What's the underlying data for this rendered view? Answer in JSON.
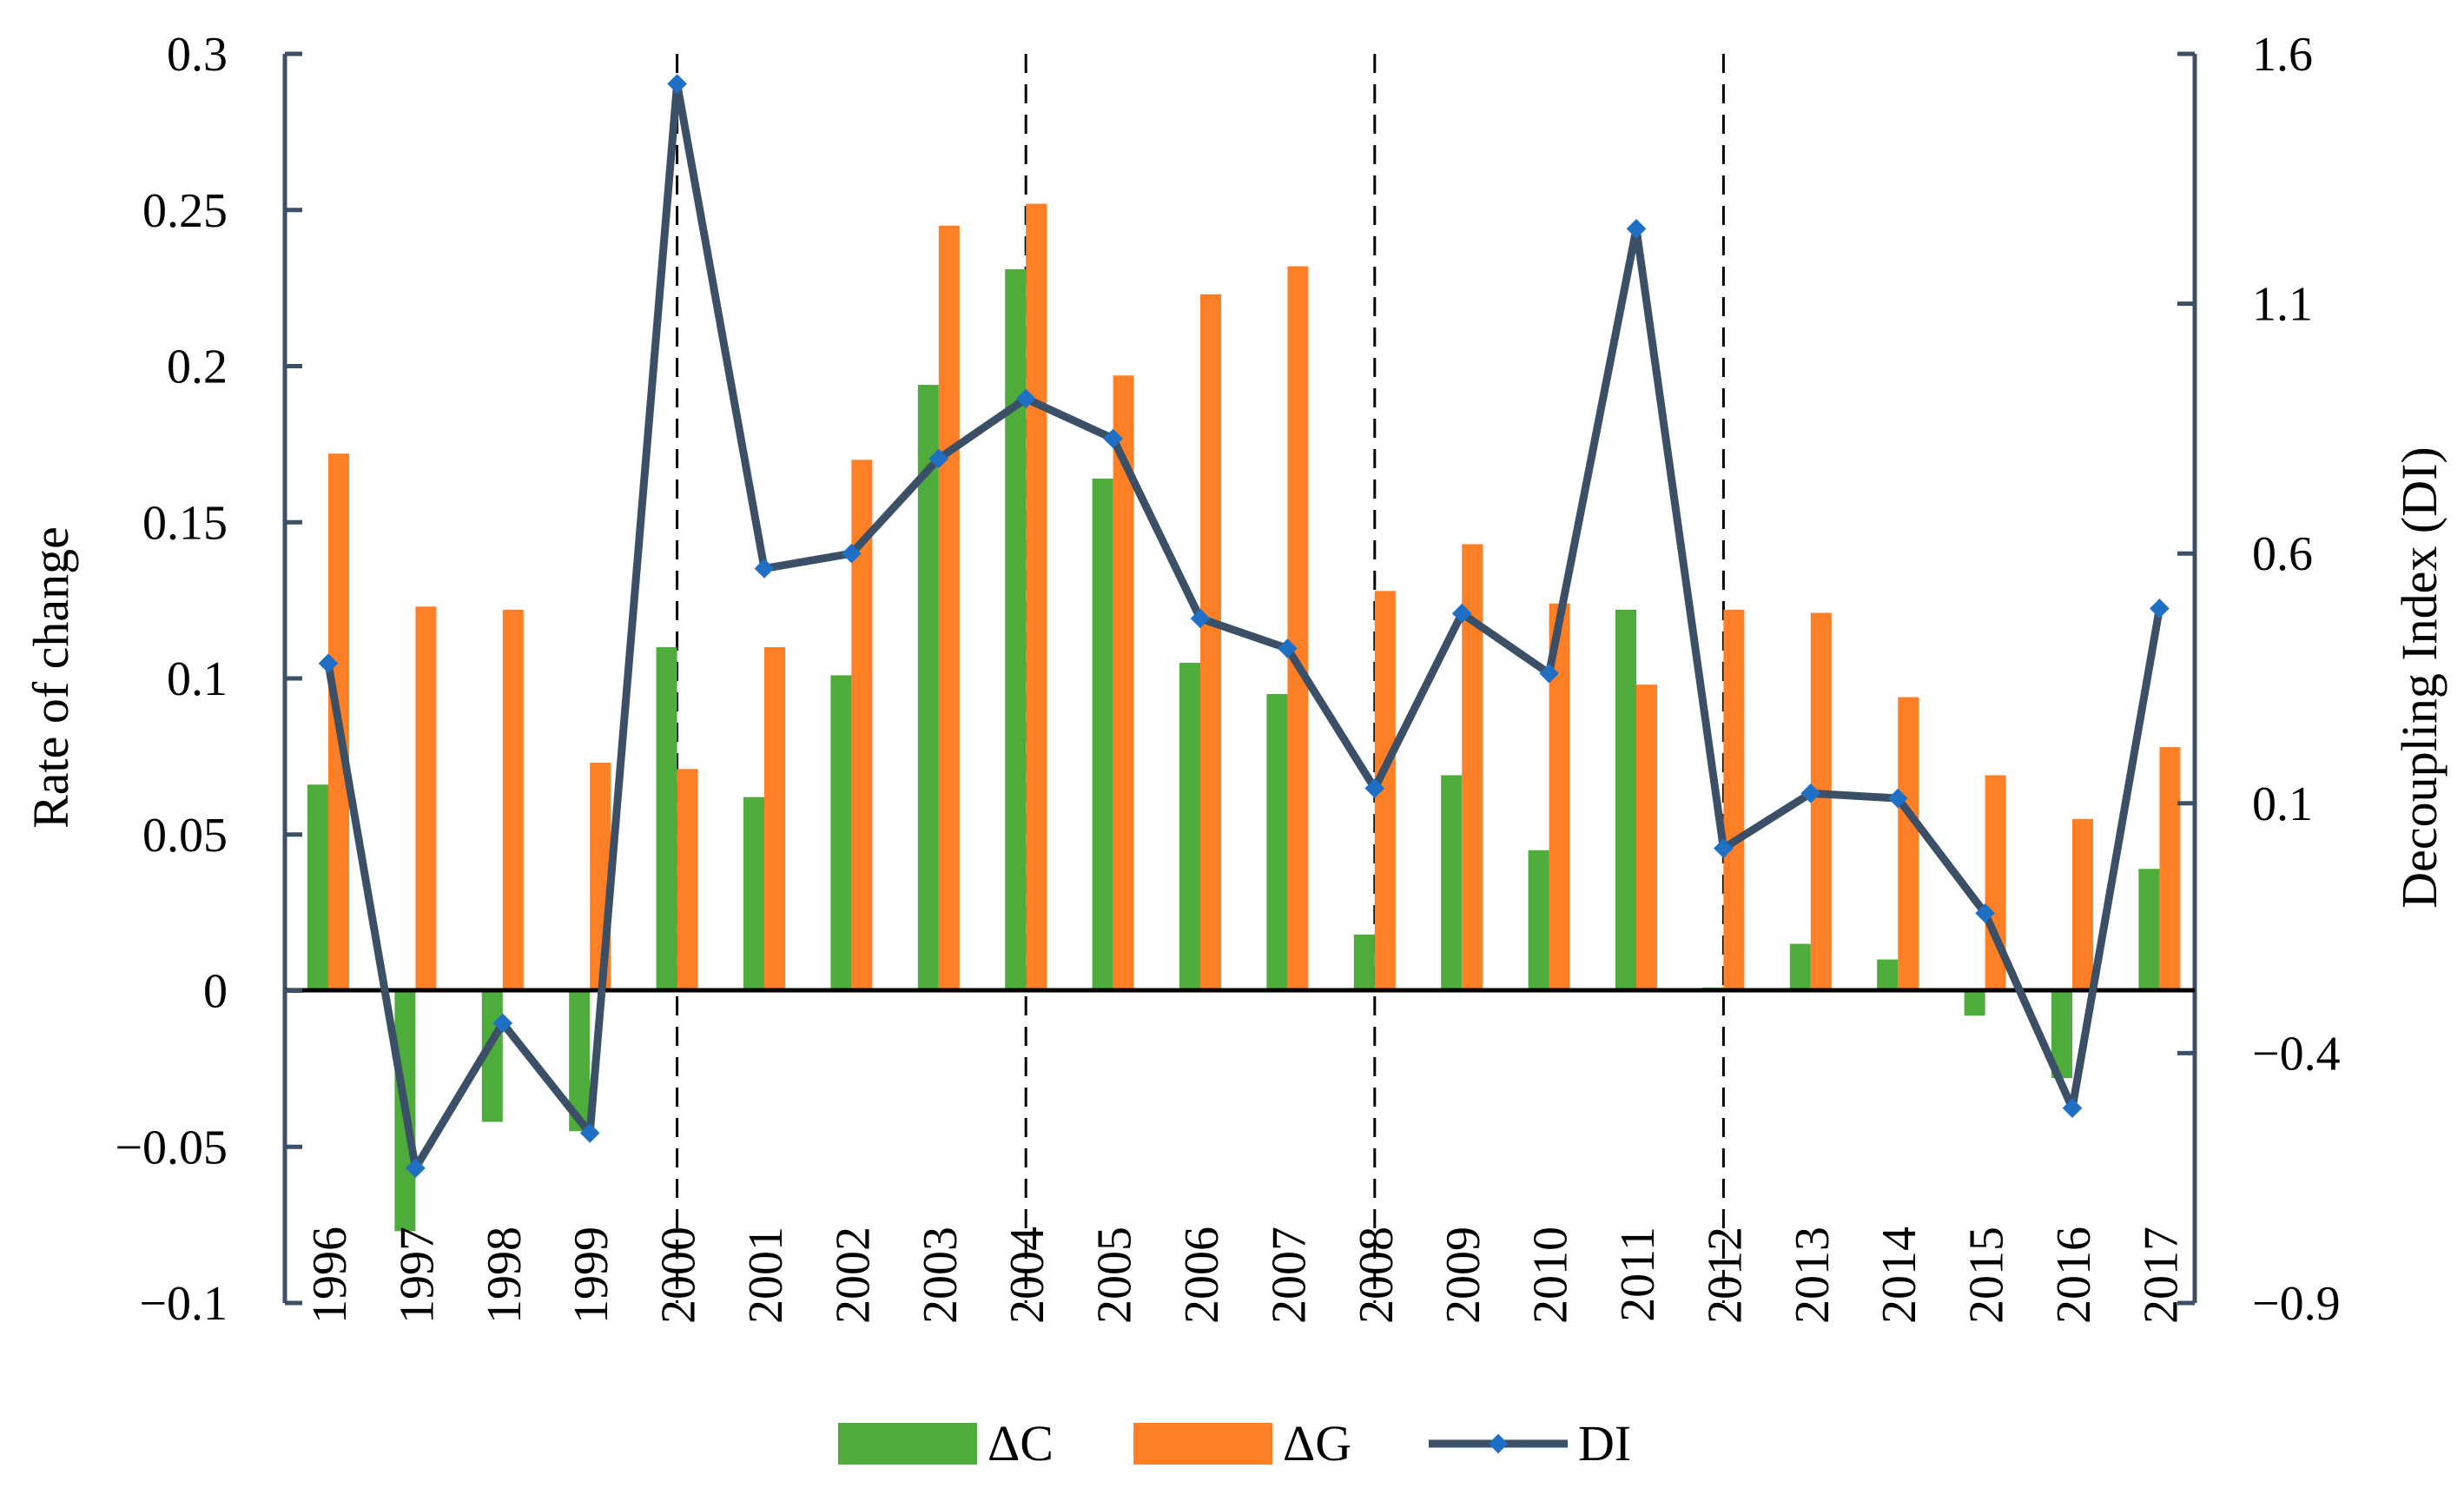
{
  "chart_data": {
    "type": "bar",
    "title": "",
    "xlabel": "",
    "ylabel": "Rate of change",
    "y2label": "Decoupling Index (DI)",
    "ylim": [
      -0.1,
      0.3
    ],
    "y2lim": [
      -0.9,
      1.6
    ],
    "yticks": [
      "0.3",
      "0.25",
      "0.2",
      "0.15",
      "0.1",
      "0.05",
      "0",
      "−0.05",
      "−0.1"
    ],
    "yticks_values": [
      0.3,
      0.25,
      0.2,
      0.15,
      0.1,
      0.05,
      0,
      -0.05,
      -0.1
    ],
    "y2ticks": [
      "1.6",
      "1.1",
      "0.6",
      "0.1",
      "−0.4",
      "−0.9"
    ],
    "y2ticks_values": [
      1.6,
      1.1,
      0.6,
      0.1,
      -0.4,
      -0.9
    ],
    "categories": [
      "1996",
      "1997",
      "1998",
      "1999",
      "2000",
      "2001",
      "2002",
      "2003",
      "2004",
      "2005",
      "2006",
      "2007",
      "2008",
      "2009",
      "2010",
      "2011",
      "2012",
      "2013",
      "2014",
      "2015",
      "2016",
      "2017"
    ],
    "dashed_lines_at": [
      "2000",
      "2004",
      "2008",
      "2012"
    ],
    "series": [
      {
        "name": "ΔC",
        "type": "bar",
        "axis": "left",
        "color": "#4EAC3B",
        "values": [
          0.066,
          -0.077,
          -0.042,
          -0.045,
          0.11,
          0.062,
          0.101,
          0.194,
          0.231,
          0.164,
          0.105,
          0.095,
          0.018,
          0.069,
          0.045,
          0.122,
          0.001,
          0.015,
          0.01,
          -0.008,
          -0.028,
          0.039
        ]
      },
      {
        "name": "ΔG",
        "type": "bar",
        "axis": "left",
        "color": "#FF7F27",
        "values": [
          0.172,
          0.123,
          0.122,
          0.073,
          0.071,
          0.11,
          0.17,
          0.245,
          0.252,
          0.197,
          0.223,
          0.232,
          0.128,
          0.143,
          0.124,
          0.098,
          0.122,
          0.121,
          0.094,
          0.069,
          0.055,
          0.078
        ]
      },
      {
        "name": "DI",
        "type": "line",
        "axis": "right",
        "color": "#3B4F66",
        "marker_color": "#1F6FC5",
        "values": [
          0.38,
          -0.63,
          -0.34,
          -0.56,
          1.54,
          0.57,
          0.6,
          0.79,
          0.91,
          0.83,
          0.47,
          0.41,
          0.13,
          0.48,
          0.36,
          1.25,
          0.01,
          0.12,
          0.11,
          -0.12,
          -0.51,
          0.49
        ]
      }
    ],
    "legend": {
      "position": "bottom-center"
    }
  }
}
